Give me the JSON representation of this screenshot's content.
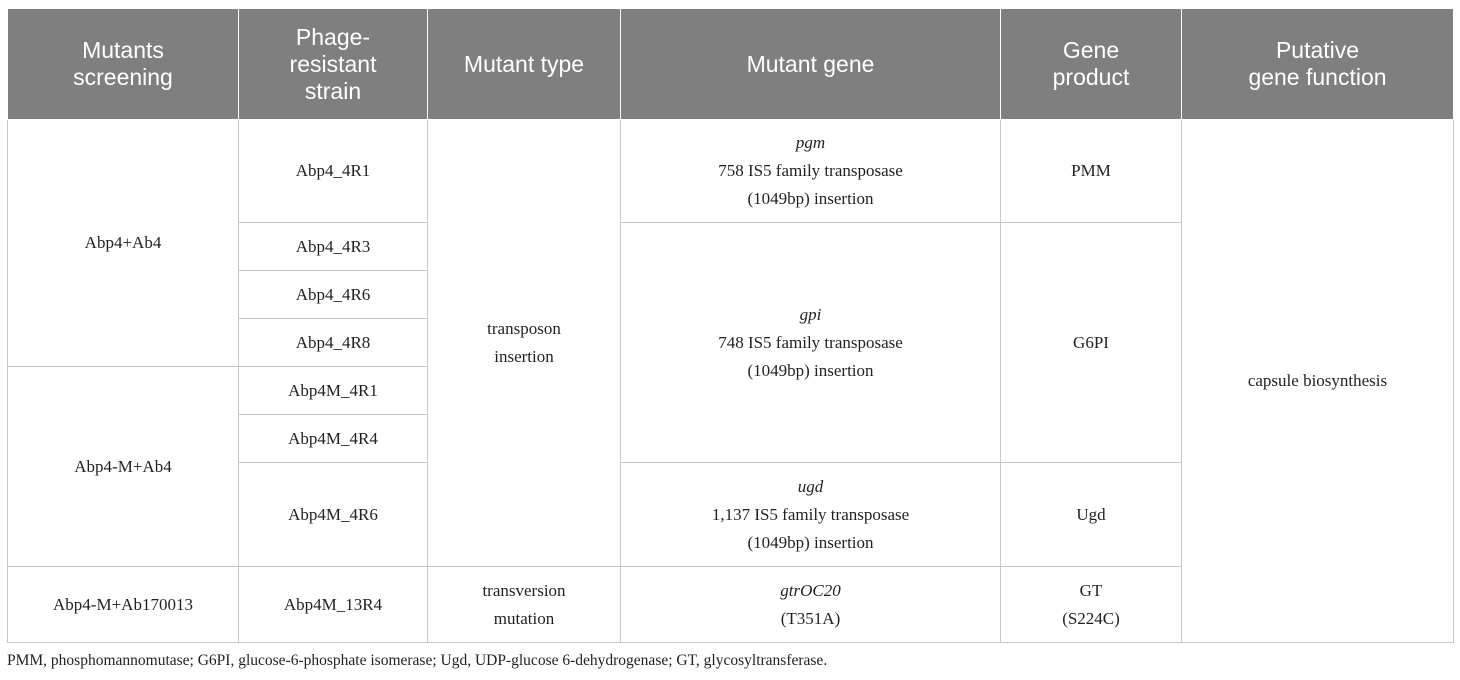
{
  "headers": {
    "col1": [
      "Mutants",
      "screening"
    ],
    "col2": [
      "Phage-",
      "resistant",
      "strain"
    ],
    "col3": [
      "Mutant type"
    ],
    "col4": [
      "Mutant gene"
    ],
    "col5": [
      "Gene",
      "product"
    ],
    "col6": [
      "Putative",
      "gene function"
    ]
  },
  "screening": {
    "group1": "Abp4+Ab4",
    "group2": "Abp4-M+Ab4",
    "group3": "Abp4-M+Ab170013"
  },
  "strains": [
    "Abp4_4R1",
    "Abp4_4R3",
    "Abp4_4R6",
    "Abp4_4R8",
    "Abp4M_4R1",
    "Abp4M_4R4",
    "Abp4M_4R6",
    "Abp4M_13R4"
  ],
  "mutant_type": {
    "transposon": [
      "transposon",
      "insertion"
    ],
    "transversion": [
      "transversion",
      "mutation"
    ]
  },
  "genes": {
    "pgm": {
      "name": "pgm",
      "line1": "758 IS5 family transposase",
      "line2": "(1049bp) insertion"
    },
    "gpi": {
      "name": "gpi",
      "line1": "748 IS5 family transposase",
      "line2": "(1049bp) insertion"
    },
    "ugd": {
      "name": "ugd",
      "line1": "1,137 IS5 family transposase",
      "line2": "(1049bp) insertion"
    },
    "gtr": {
      "name": "gtrOC20",
      "line1": "(T351A)"
    }
  },
  "products": {
    "pmm": "PMM",
    "g6pi": "G6PI",
    "ugd": "Ugd",
    "gt": [
      "GT",
      "(S224C)"
    ]
  },
  "function": "capsule biosynthesis",
  "footnote": "PMM, phosphomannomutase; G6PI, glucose-6-phosphate isomerase; Ugd, UDP-glucose 6-dehydrogenase; GT, glycosyltransferase."
}
